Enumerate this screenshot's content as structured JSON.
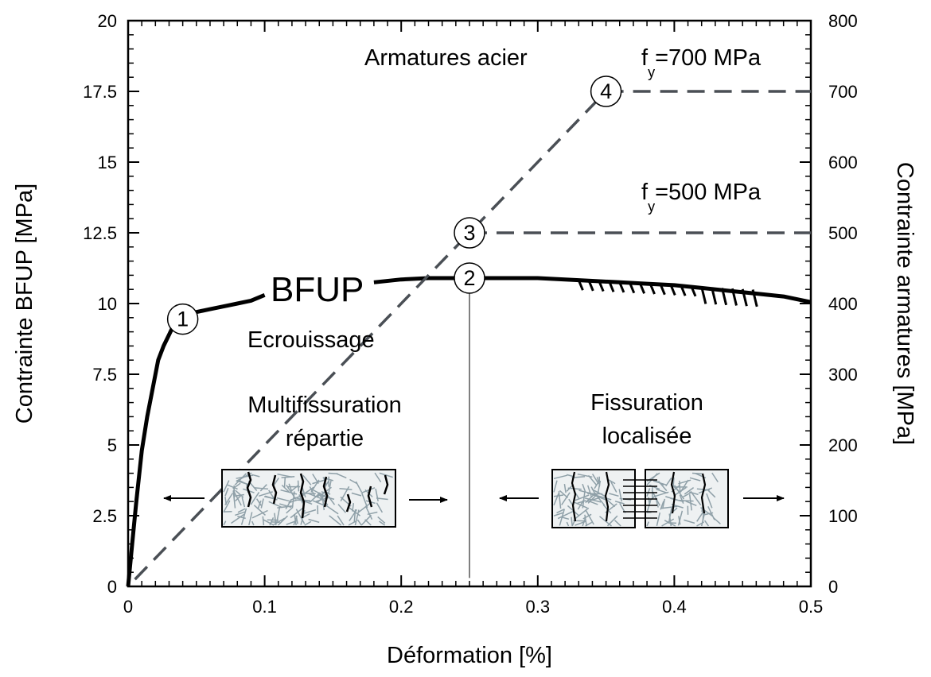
{
  "chart_data": {
    "type": "line",
    "xlabel": "Déformation [%]",
    "ylabel_left": "Contrainte BFUP [MPa]",
    "ylabel_right": "Contrainte armatures [MPa]",
    "xlim": [
      0,
      0.5
    ],
    "ylim_left": [
      0,
      20
    ],
    "ylim_right": [
      0,
      800
    ],
    "x_ticks": [
      "0",
      "0.1",
      "0.2",
      "0.3",
      "0.4",
      "0.5"
    ],
    "y_left_ticks": [
      "0",
      "2.5",
      "5",
      "7.5",
      "10",
      "12.5",
      "15",
      "17.5",
      "20"
    ],
    "y_right_ticks": [
      "0",
      "100",
      "200",
      "300",
      "400",
      "500",
      "600",
      "700",
      "800"
    ],
    "grid": false,
    "series": [
      {
        "name": "BFUP",
        "axis": "left",
        "style": "solid",
        "color": "#000000",
        "points": [
          [
            0,
            0
          ],
          [
            0.003,
            1.5
          ],
          [
            0.006,
            3.0
          ],
          [
            0.01,
            4.8
          ],
          [
            0.014,
            6.0
          ],
          [
            0.018,
            7.0
          ],
          [
            0.022,
            8.0
          ],
          [
            0.026,
            8.5
          ],
          [
            0.03,
            8.9
          ],
          [
            0.033,
            9.2
          ],
          [
            0.036,
            9.4
          ],
          [
            0.04,
            9.5
          ],
          [
            0.05,
            9.7
          ],
          [
            0.06,
            9.8
          ],
          [
            0.07,
            9.9
          ],
          [
            0.08,
            10.0
          ],
          [
            0.09,
            10.1
          ],
          [
            0.1,
            10.3
          ],
          [
            0.18,
            10.75
          ],
          [
            0.2,
            10.85
          ],
          [
            0.22,
            10.9
          ],
          [
            0.25,
            10.9
          ],
          [
            0.28,
            10.9
          ],
          [
            0.3,
            10.9
          ],
          [
            0.32,
            10.85
          ],
          [
            0.34,
            10.8
          ],
          [
            0.36,
            10.75
          ],
          [
            0.38,
            10.7
          ],
          [
            0.4,
            10.65
          ],
          [
            0.42,
            10.55
          ],
          [
            0.44,
            10.45
          ],
          [
            0.46,
            10.35
          ],
          [
            0.48,
            10.25
          ],
          [
            0.5,
            10.05
          ]
        ]
      },
      {
        "name": "Armatures acier",
        "axis": "right",
        "style": "dashed",
        "color": "#4a4f55",
        "points": [
          [
            0.005,
            10
          ],
          [
            0.35,
            700
          ]
        ]
      },
      {
        "name": "f_y=700 MPa",
        "axis": "right",
        "style": "dashed",
        "color": "#4a4f55",
        "points": [
          [
            0.35,
            700
          ],
          [
            0.5,
            700
          ]
        ]
      },
      {
        "name": "f_y=500 MPa",
        "axis": "right",
        "style": "dashed",
        "color": "#4a4f55",
        "points": [
          [
            0.25,
            500
          ],
          [
            0.5,
            500
          ]
        ]
      }
    ],
    "markers": [
      {
        "label": "1",
        "x": 0.04,
        "y_left": 9.45
      },
      {
        "label": "2",
        "x": 0.25,
        "y_left": 10.9
      },
      {
        "label": "3",
        "x": 0.25,
        "y_left": 12.5
      },
      {
        "label": "4",
        "x": 0.35,
        "y_left": 17.5
      }
    ],
    "vertical_line_x": 0.25,
    "annotations": {
      "bfup": "BFUP",
      "ecrouissage": "Ecrouissage",
      "armatures": "Armatures acier",
      "fy700_prefix": "f",
      "fy700_sub": "y",
      "fy700_rest": "=700 MPa",
      "fy500_prefix": "f",
      "fy500_sub": "y",
      "fy500_rest": "=500 MPa",
      "multi_line1": "Multifissuration",
      "multi_line2": "répartie",
      "fiss_line1": "Fissuration",
      "fiss_line2": "localisée"
    }
  }
}
